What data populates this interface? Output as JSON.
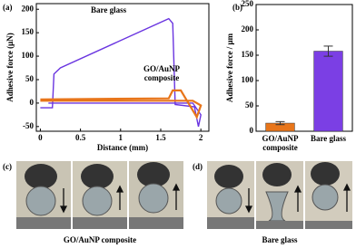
{
  "chart_data": [
    {
      "type": "line",
      "panel": "(a)",
      "xlabel": "Distance (mm)",
      "ylabel": "Adhesive force (μN)",
      "xlim": [
        -0.05,
        2.1
      ],
      "ylim": [
        -60,
        212
      ],
      "xticks": [
        0,
        0.5,
        1,
        1.5,
        2
      ],
      "yticks": [
        -50,
        0,
        50,
        100,
        150,
        200
      ],
      "series": [
        {
          "name": "Bare glass",
          "color": "#6a35e0",
          "x": [
            0,
            0.15,
            0.17,
            0.25,
            1.6,
            1.65,
            1.68,
            1.92,
            1.97,
            2.0,
            1.9,
            0.1
          ],
          "values": [
            -10,
            -10,
            62,
            75,
            180,
            170,
            -3,
            -8,
            -50,
            -25,
            0,
            0
          ]
        },
        {
          "name": "GO/AuNP composite",
          "color": "#e8751a",
          "x": [
            0,
            1.6,
            1.65,
            1.75,
            1.95,
            2.0,
            1.9,
            0
          ],
          "values": [
            8,
            10,
            27,
            27,
            -30,
            -5,
            5,
            5
          ]
        }
      ]
    },
    {
      "type": "bar",
      "panel": "(b)",
      "ylabel": "Adhesive force / μm",
      "categories": [
        "GO/AuNP composite",
        "Bare glass"
      ],
      "values": [
        16,
        158
      ],
      "errors": [
        3,
        10
      ],
      "colors": [
        "#e8751a",
        "#7b3fe4"
      ],
      "ylim": [
        0,
        250
      ],
      "yticks": [
        0,
        50,
        100,
        150,
        200,
        250
      ]
    }
  ],
  "photos": [
    {
      "panel": "(c)",
      "caption": "GO/AuNP composite"
    },
    {
      "panel": "(d)",
      "caption": "Bare glass"
    }
  ]
}
